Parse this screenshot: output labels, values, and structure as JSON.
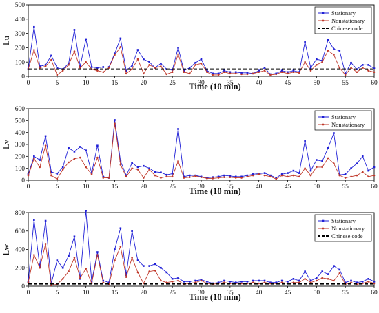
{
  "chart_data": [
    {
      "type": "line",
      "ylabel": "Lu",
      "xlabel": "Time (10 min)",
      "xlim": [
        0,
        60
      ],
      "ylim": [
        0,
        500
      ],
      "xticks": [
        0,
        5,
        10,
        15,
        20,
        25,
        30,
        35,
        40,
        45,
        50,
        55,
        60
      ],
      "yticks": [
        0,
        100,
        200,
        300,
        400,
        500
      ],
      "legend": "top-right",
      "series": [
        {
          "name": "Stationary",
          "color": "#1f1fd6",
          "marker": "square",
          "values": [
            50,
            345,
            70,
            80,
            145,
            60,
            50,
            90,
            325,
            70,
            260,
            65,
            60,
            65,
            65,
            160,
            265,
            40,
            75,
            185,
            120,
            100,
            60,
            90,
            50,
            45,
            200,
            40,
            60,
            95,
            120,
            40,
            20,
            20,
            40,
            30,
            30,
            25,
            25,
            20,
            40,
            60,
            15,
            20,
            40,
            30,
            40,
            30,
            240,
            60,
            120,
            110,
            255,
            190,
            180,
            20,
            95,
            50,
            80,
            80,
            55
          ]
        },
        {
          "name": "Nonstationary",
          "color": "#c0392b",
          "marker": "circle",
          "values": [
            50,
            185,
            60,
            70,
            115,
            10,
            40,
            80,
            175,
            60,
            100,
            50,
            40,
            30,
            60,
            150,
            205,
            20,
            50,
            120,
            20,
            80,
            60,
            70,
            15,
            30,
            155,
            30,
            20,
            80,
            90,
            30,
            10,
            10,
            30,
            20,
            20,
            15,
            15,
            20,
            30,
            40,
            10,
            15,
            30,
            20,
            30,
            25,
            100,
            40,
            80,
            100,
            180,
            150,
            60,
            10,
            60,
            30,
            60,
            40,
            30
          ]
        },
        {
          "name": "Chinese code",
          "color": "#000000",
          "dashed": true,
          "values": [
            50,
            50
          ]
        }
      ]
    },
    {
      "type": "line",
      "ylabel": "Lv",
      "xlabel": "Time (10 min)",
      "xlim": [
        0,
        60
      ],
      "ylim": [
        0,
        600
      ],
      "xticks": [
        0,
        5,
        10,
        15,
        20,
        25,
        30,
        35,
        40,
        45,
        50,
        55,
        60
      ],
      "yticks": [
        0,
        100,
        200,
        300,
        400,
        500,
        600
      ],
      "legend": "top-right",
      "series": [
        {
          "name": "Stationary",
          "color": "#1f1fd6",
          "marker": "square",
          "values": [
            50,
            200,
            170,
            370,
            70,
            55,
            110,
            270,
            240,
            280,
            250,
            60,
            290,
            30,
            20,
            505,
            160,
            40,
            145,
            110,
            120,
            100,
            70,
            65,
            45,
            55,
            430,
            30,
            40,
            40,
            30,
            20,
            25,
            30,
            40,
            35,
            30,
            30,
            40,
            50,
            55,
            60,
            40,
            20,
            50,
            60,
            80,
            60,
            330,
            80,
            170,
            160,
            270,
            395,
            45,
            50,
            100,
            140,
            200,
            80,
            110
          ]
        },
        {
          "name": "Nonstationary",
          "color": "#c0392b",
          "marker": "circle",
          "values": [
            40,
            180,
            110,
            290,
            40,
            10,
            90,
            150,
            180,
            190,
            110,
            50,
            190,
            20,
            20,
            475,
            130,
            30,
            100,
            90,
            20,
            90,
            40,
            20,
            30,
            30,
            160,
            20,
            25,
            35,
            25,
            15,
            15,
            20,
            25,
            25,
            20,
            20,
            30,
            40,
            50,
            40,
            30,
            10,
            40,
            30,
            40,
            30,
            100,
            40,
            110,
            110,
            185,
            140,
            40,
            20,
            30,
            40,
            70,
            30,
            40
          ]
        }
      ]
    },
    {
      "type": "line",
      "ylabel": "Lw",
      "xlabel": "Time (10 min)",
      "xlim": [
        0,
        60
      ],
      "ylim": [
        0,
        800
      ],
      "xticks": [
        0,
        5,
        10,
        15,
        20,
        25,
        30,
        35,
        40,
        45,
        50,
        55,
        60
      ],
      "yticks": [
        0,
        200,
        400,
        600,
        800
      ],
      "legend": "top-right",
      "series": [
        {
          "name": "Stationary",
          "color": "#1f1fd6",
          "marker": "square",
          "values": [
            50,
            720,
            210,
            710,
            30,
            280,
            200,
            330,
            540,
            80,
            820,
            50,
            370,
            60,
            40,
            400,
            630,
            120,
            600,
            280,
            220,
            220,
            240,
            200,
            150,
            80,
            90,
            50,
            50,
            60,
            70,
            50,
            30,
            40,
            60,
            50,
            40,
            50,
            50,
            60,
            60,
            60,
            40,
            40,
            60,
            50,
            80,
            60,
            160,
            60,
            90,
            160,
            130,
            220,
            180,
            40,
            60,
            40,
            50,
            80,
            50
          ]
        },
        {
          "name": "Nonstationary",
          "color": "#c0392b",
          "marker": "circle",
          "values": [
            40,
            340,
            200,
            460,
            10,
            20,
            80,
            160,
            310,
            90,
            190,
            30,
            340,
            40,
            20,
            280,
            430,
            100,
            310,
            150,
            30,
            160,
            170,
            60,
            40,
            50,
            60,
            20,
            30,
            40,
            60,
            30,
            20,
            30,
            40,
            30,
            30,
            30,
            30,
            40,
            30,
            40,
            30,
            30,
            40,
            30,
            40,
            40,
            80,
            40,
            60,
            90,
            80,
            60,
            140,
            20,
            40,
            20,
            30,
            50,
            30
          ]
        },
        {
          "name": "Chinese code",
          "color": "#000000",
          "dashed": true,
          "values": [
            25,
            25
          ]
        }
      ]
    }
  ]
}
